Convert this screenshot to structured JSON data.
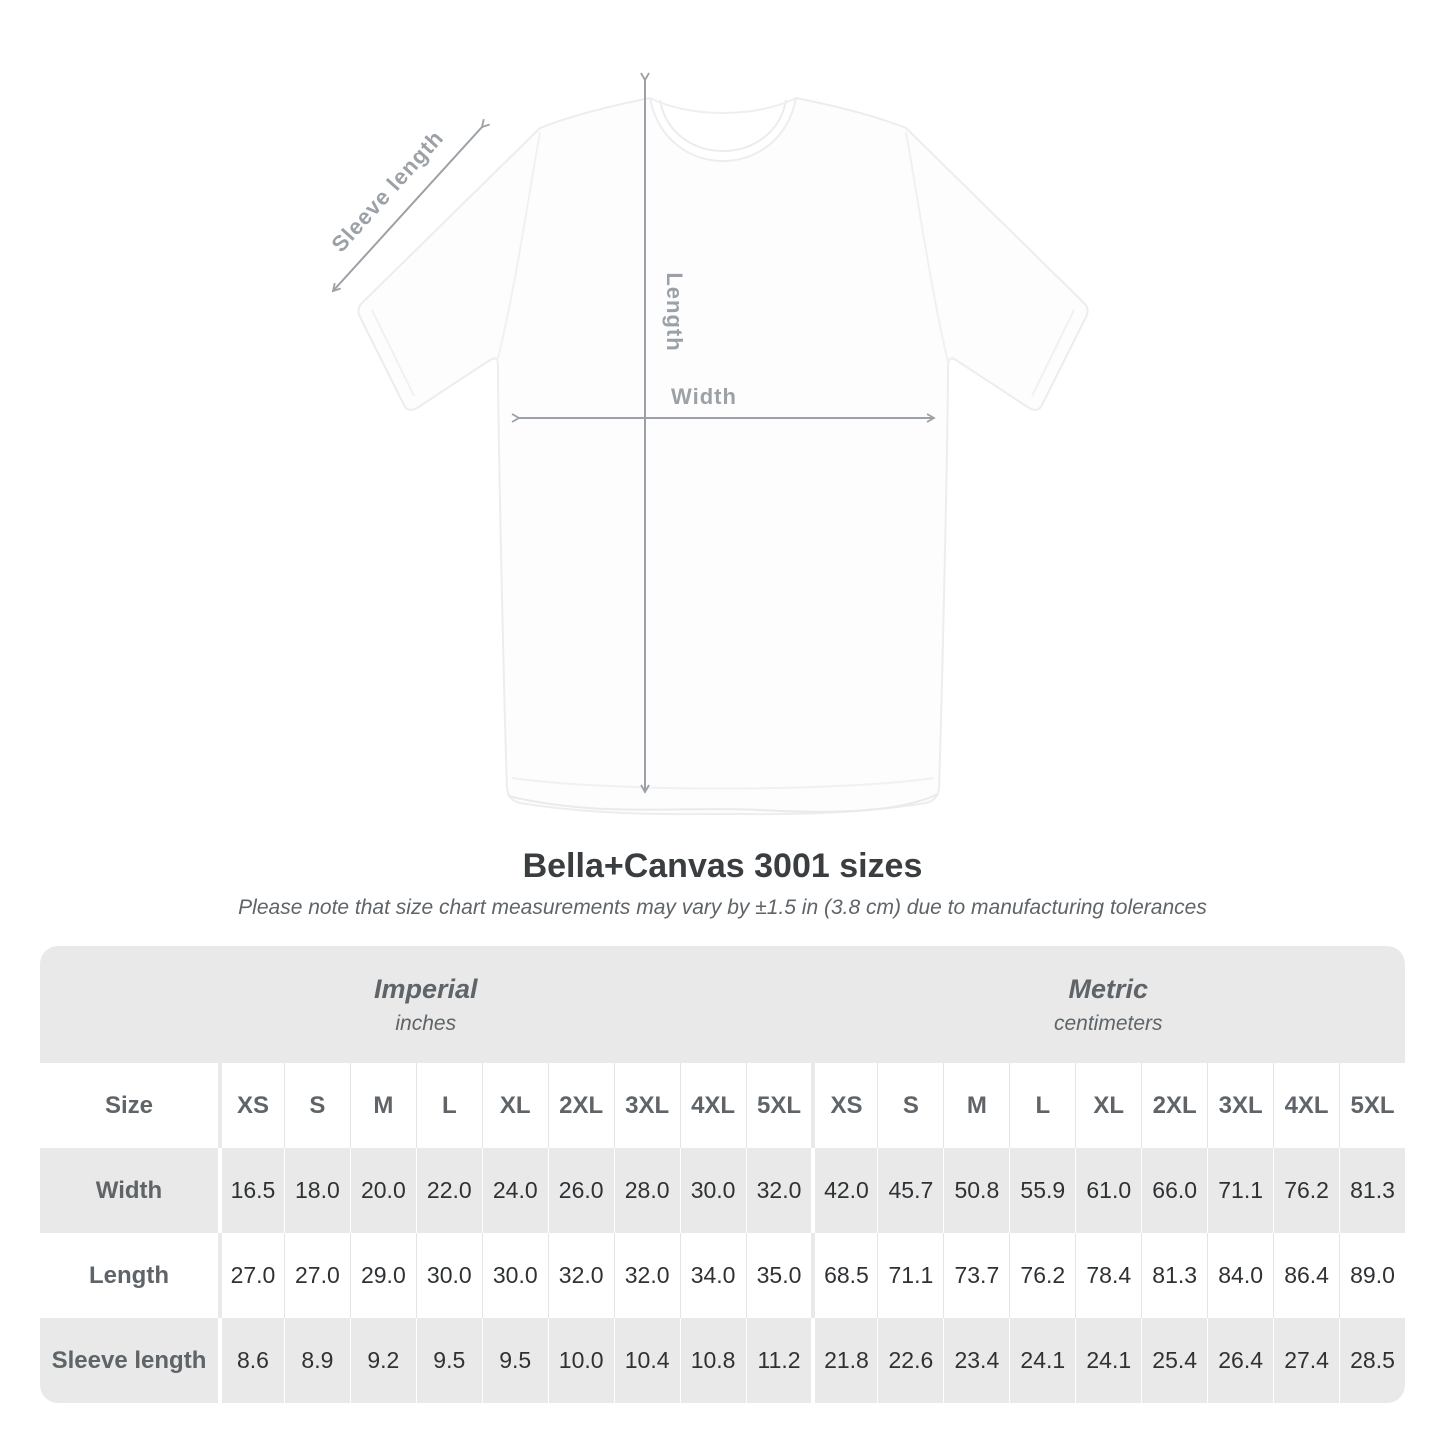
{
  "diagram": {
    "sleeve_label": "Sleeve length",
    "length_label": "Length",
    "width_label": "Width"
  },
  "title": "Bella+Canvas 3001 sizes",
  "subtitle": "Please note that size chart measurements may vary by ±1.5 in (3.8 cm) due to manufacturing tolerances",
  "table": {
    "unit_groups": [
      {
        "title": "Imperial",
        "subtitle": "inches"
      },
      {
        "title": "Metric",
        "subtitle": "centimeters"
      }
    ],
    "size_label": "Size",
    "sizes": [
      "XS",
      "S",
      "M",
      "L",
      "XL",
      "2XL",
      "3XL",
      "4XL",
      "5XL"
    ],
    "rows": [
      {
        "label": "Width",
        "imperial": [
          "16.5",
          "18.0",
          "20.0",
          "22.0",
          "24.0",
          "26.0",
          "28.0",
          "30.0",
          "32.0"
        ],
        "metric": [
          "42.0",
          "45.7",
          "50.8",
          "55.9",
          "61.0",
          "66.0",
          "71.1",
          "76.2",
          "81.3"
        ]
      },
      {
        "label": "Length",
        "imperial": [
          "27.0",
          "27.0",
          "29.0",
          "30.0",
          "30.0",
          "32.0",
          "32.0",
          "34.0",
          "35.0"
        ],
        "metric": [
          "68.5",
          "71.1",
          "73.7",
          "76.2",
          "78.4",
          "81.3",
          "84.0",
          "86.4",
          "89.0"
        ]
      },
      {
        "label": "Sleeve length",
        "imperial": [
          "8.6",
          "8.9",
          "9.2",
          "9.5",
          "9.5",
          "10.0",
          "10.4",
          "10.8",
          "11.2"
        ],
        "metric": [
          "21.8",
          "22.6",
          "23.4",
          "24.1",
          "24.1",
          "25.4",
          "26.4",
          "27.4",
          "28.5"
        ]
      }
    ]
  },
  "chart_data": {
    "type": "table",
    "title": "Bella+Canvas 3001 sizes",
    "note": "Size chart measurements may vary by ±1.5 in (3.8 cm) due to manufacturing tolerances",
    "columns": [
      "XS",
      "S",
      "M",
      "L",
      "XL",
      "2XL",
      "3XL",
      "4XL",
      "5XL"
    ],
    "rows": [
      {
        "label": "Width",
        "unit_imperial": "in",
        "imperial": [
          16.5,
          18.0,
          20.0,
          22.0,
          24.0,
          26.0,
          28.0,
          30.0,
          32.0
        ],
        "unit_metric": "cm",
        "metric": [
          42.0,
          45.7,
          50.8,
          55.9,
          61.0,
          66.0,
          71.1,
          76.2,
          81.3
        ]
      },
      {
        "label": "Length",
        "unit_imperial": "in",
        "imperial": [
          27.0,
          27.0,
          29.0,
          30.0,
          30.0,
          32.0,
          32.0,
          34.0,
          35.0
        ],
        "unit_metric": "cm",
        "metric": [
          68.5,
          71.1,
          73.7,
          76.2,
          78.4,
          81.3,
          84.0,
          86.4,
          89.0
        ]
      },
      {
        "label": "Sleeve length",
        "unit_imperial": "in",
        "imperial": [
          8.6,
          8.9,
          9.2,
          9.5,
          9.5,
          10.0,
          10.4,
          10.8,
          11.2
        ],
        "unit_metric": "cm",
        "metric": [
          21.8,
          22.6,
          23.4,
          24.1,
          24.1,
          25.4,
          26.4,
          27.4,
          28.5
        ]
      }
    ]
  }
}
